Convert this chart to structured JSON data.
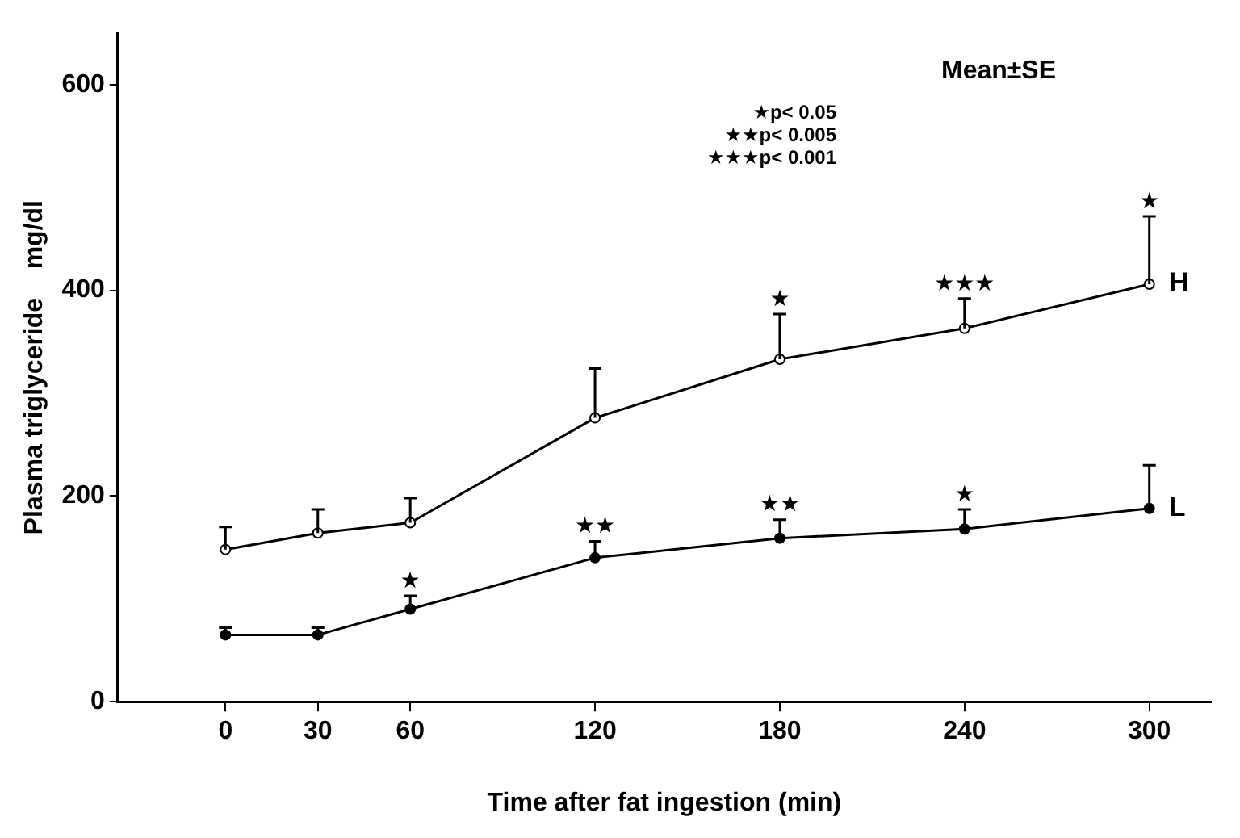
{
  "chart_data": {
    "type": "line",
    "xlabel": "Time after fat ingestion (min)",
    "ylabel": "Plasma triglyceride    mg/dl",
    "x": [
      0,
      30,
      60,
      120,
      180,
      240,
      300
    ],
    "series": [
      {
        "name": "H",
        "color": "#000000",
        "marker": "circle",
        "values": [
          148,
          164,
          174,
          276,
          333,
          363,
          406
        ],
        "errors": [
          [
            148,
            170
          ],
          [
            164,
            187
          ],
          [
            174,
            198
          ],
          [
            276,
            324
          ],
          [
            333,
            377
          ],
          [
            363,
            392
          ],
          [
            406,
            472
          ]
        ]
      },
      {
        "name": "L",
        "color": "#000000",
        "marker": "circle",
        "values": [
          65,
          65,
          90,
          140,
          159,
          168,
          188
        ],
        "errors": [
          [
            65,
            72
          ],
          [
            65,
            72
          ],
          [
            90,
            103
          ],
          [
            140,
            156
          ],
          [
            159,
            177
          ],
          [
            168,
            187
          ],
          [
            188,
            230
          ]
        ]
      }
    ],
    "xlim": [
      -35,
      320
    ],
    "xticks": [
      0,
      30,
      60,
      120,
      180,
      240,
      300
    ],
    "ylim": [
      0,
      650
    ],
    "yticks": [
      0,
      200,
      400,
      600
    ],
    "grid": false,
    "legend": false,
    "annotations": [
      "Mean±SE",
      "★p< 0.05",
      "★★p< 0.005",
      "★★★p< 0.001",
      {
        "text": "★",
        "x": 180,
        "y": 377
      },
      {
        "text": "★★★",
        "x": 240,
        "y": 392
      },
      {
        "text": "★",
        "x": 300,
        "y": 472
      },
      {
        "text": "★",
        "x": 60,
        "y": 103
      },
      {
        "text": "★★",
        "x": 120,
        "y": 156
      },
      {
        "text": "★★",
        "x": 180,
        "y": 177
      },
      {
        "text": "★",
        "x": 240,
        "y": 187
      }
    ]
  }
}
